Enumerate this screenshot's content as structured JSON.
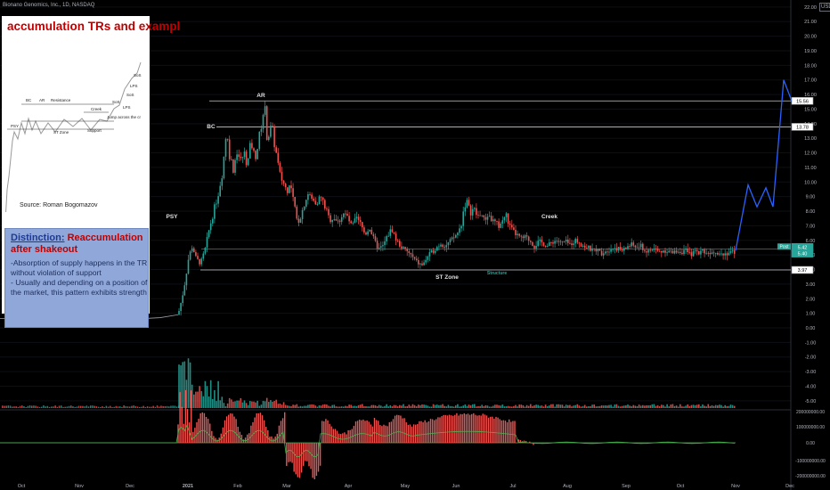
{
  "header": {
    "symbol": "Bionano Genomics, Inc., 1D, NASDAQ",
    "currency": "USD"
  },
  "panel": {
    "title": "accumulation TRs and exampl",
    "source": "Source: Roman Bogomazov",
    "thumb_labels": [
      "BC",
      "AR",
      "Resistance",
      "PSY",
      "ST Zone",
      "Creek",
      "SoS",
      "LPS",
      "Jump across the cr",
      "Support",
      "SoS",
      "LPS",
      "SoS"
    ]
  },
  "distinction": {
    "heading_a": "Distinction:",
    "heading_b": "Reaccumulation after shakeout",
    "body": "-Absorption of supply happens in the TR without violation of support\n- Usually and depending on a position of the market, this pattern exhibits strength"
  },
  "annotations": {
    "psy": "PSY",
    "bc": "BC",
    "ar": "AR",
    "st_zone": "ST Zone",
    "structure": "Structure",
    "creek": "Creek"
  },
  "price_tags": {
    "ar_level": "15.56",
    "bc_level": "13.78",
    "support_level": "3.97",
    "post": "Post",
    "last_a": "5.42",
    "last_b": "5.40"
  },
  "colors": {
    "bull": "#26a69a",
    "bear": "#ef5350",
    "projection": "#2962ff",
    "volume_up": "#26a69a",
    "volume_down": "#ef5350",
    "osc_line": "#4caf50"
  },
  "chart_data": {
    "type": "candlestick",
    "y_axis_ticks": [
      "22.00",
      "21.00",
      "20.00",
      "19.00",
      "18.00",
      "17.00",
      "16.00",
      "15.00",
      "14.00",
      "13.00",
      "12.00",
      "11.00",
      "10.00",
      "9.00",
      "8.00",
      "7.00",
      "6.00",
      "5.00",
      "4.00",
      "3.00",
      "2.00",
      "1.00",
      "0.00",
      "-1.00",
      "-2.00",
      "-3.00",
      "-4.00",
      "-5.00"
    ],
    "osc_axis_ticks": [
      "200000000.00",
      "100000000.00",
      "0.00",
      "-100000000.00",
      "-200000000.00"
    ],
    "x_axis_ticks": [
      "Oct",
      "Nov",
      "Dec",
      "2021",
      "Feb",
      "Mar",
      "Apr",
      "May",
      "Jun",
      "Jul",
      "Aug",
      "Sep",
      "Oct",
      "Nov",
      "Dec"
    ],
    "levels": {
      "ar": 15.56,
      "bc": 13.78,
      "support": 3.97
    },
    "close_path": [
      [
        0,
        0.65
      ],
      [
        30,
        0.63
      ],
      [
        60,
        0.6
      ],
      [
        90,
        0.6
      ],
      [
        120,
        0.62
      ],
      [
        150,
        0.6
      ],
      [
        180,
        0.7
      ],
      [
        200,
        0.9
      ],
      [
        205,
        2.2
      ],
      [
        208,
        3.2
      ],
      [
        212,
        4.9
      ],
      [
        216,
        5.6
      ],
      [
        220,
        4.8
      ],
      [
        225,
        4.4
      ],
      [
        230,
        5.3
      ],
      [
        235,
        6.8
      ],
      [
        240,
        8.0
      ],
      [
        245,
        9.2
      ],
      [
        250,
        10.8
      ],
      [
        254,
        13.5
      ],
      [
        258,
        11.8
      ],
      [
        262,
        10.9
      ],
      [
        266,
        12.2
      ],
      [
        270,
        11.4
      ],
      [
        274,
        12.0
      ],
      [
        278,
        11.2
      ],
      [
        282,
        12.8
      ],
      [
        286,
        11.6
      ],
      [
        290,
        12.6
      ],
      [
        294,
        14.2
      ],
      [
        297,
        15.3
      ],
      [
        300,
        13.0
      ],
      [
        305,
        13.8
      ],
      [
        310,
        12.0
      ],
      [
        314,
        10.5
      ],
      [
        318,
        10.0
      ],
      [
        322,
        9.4
      ],
      [
        326,
        9.8
      ],
      [
        330,
        8.5
      ],
      [
        334,
        7.2
      ],
      [
        338,
        7.7
      ],
      [
        342,
        8.6
      ],
      [
        346,
        9.2
      ],
      [
        350,
        8.8
      ],
      [
        355,
        8.6
      ],
      [
        360,
        9.0
      ],
      [
        365,
        8.3
      ],
      [
        370,
        7.4
      ],
      [
        375,
        7.6
      ],
      [
        380,
        7.2
      ],
      [
        385,
        7.9
      ],
      [
        390,
        7.6
      ],
      [
        395,
        6.9
      ],
      [
        400,
        7.5
      ],
      [
        405,
        7.1
      ],
      [
        410,
        6.4
      ],
      [
        415,
        6.9
      ],
      [
        420,
        6.0
      ],
      [
        425,
        5.4
      ],
      [
        430,
        5.6
      ],
      [
        435,
        6.3
      ],
      [
        440,
        6.8
      ],
      [
        445,
        6.0
      ],
      [
        450,
        5.6
      ],
      [
        455,
        5.3
      ],
      [
        460,
        5.1
      ],
      [
        465,
        4.7
      ],
      [
        470,
        4.4
      ],
      [
        475,
        4.3
      ],
      [
        480,
        4.9
      ],
      [
        485,
        5.2
      ],
      [
        490,
        5.5
      ],
      [
        495,
        5.8
      ],
      [
        500,
        5.6
      ],
      [
        505,
        5.9
      ],
      [
        510,
        6.2
      ],
      [
        515,
        6.6
      ],
      [
        518,
        7.1
      ],
      [
        521,
        8.3
      ],
      [
        524,
        8.7
      ],
      [
        528,
        7.9
      ],
      [
        532,
        8.2
      ],
      [
        536,
        7.6
      ],
      [
        540,
        7.9
      ],
      [
        544,
        7.3
      ],
      [
        548,
        7.8
      ],
      [
        552,
        7.4
      ],
      [
        556,
        7.2
      ],
      [
        560,
        7.0
      ],
      [
        564,
        7.3
      ],
      [
        568,
        7.8
      ],
      [
        572,
        7.0
      ],
      [
        576,
        6.6
      ],
      [
        580,
        6.4
      ],
      [
        585,
        6.1
      ],
      [
        590,
        6.2
      ],
      [
        595,
        6.0
      ],
      [
        600,
        5.6
      ],
      [
        605,
        5.9
      ],
      [
        610,
        5.8
      ],
      [
        615,
        5.6
      ],
      [
        620,
        5.9
      ],
      [
        625,
        6.0
      ],
      [
        630,
        5.8
      ],
      [
        635,
        5.9
      ],
      [
        640,
        5.7
      ],
      [
        645,
        6.0
      ],
      [
        650,
        5.9
      ],
      [
        655,
        5.6
      ],
      [
        660,
        5.5
      ],
      [
        665,
        5.3
      ],
      [
        670,
        5.4
      ],
      [
        675,
        5.1
      ],
      [
        680,
        5.3
      ],
      [
        685,
        5.4
      ],
      [
        690,
        5.5
      ],
      [
        695,
        5.4
      ],
      [
        700,
        5.3
      ],
      [
        705,
        5.6
      ],
      [
        710,
        5.7
      ],
      [
        715,
        5.5
      ],
      [
        720,
        5.6
      ],
      [
        725,
        5.2
      ],
      [
        730,
        5.3
      ],
      [
        735,
        5.4
      ],
      [
        740,
        5.2
      ],
      [
        745,
        5.3
      ],
      [
        750,
        5.3
      ],
      [
        755,
        5.1
      ],
      [
        760,
        5.3
      ],
      [
        765,
        5.2
      ],
      [
        770,
        5.3
      ],
      [
        775,
        5.0
      ],
      [
        780,
        5.2
      ],
      [
        785,
        5.2
      ],
      [
        790,
        5.3
      ],
      [
        795,
        5.1
      ],
      [
        800,
        5.3
      ],
      [
        805,
        5.2
      ],
      [
        810,
        5.1
      ],
      [
        815,
        5.1
      ],
      [
        820,
        5.2
      ],
      [
        826,
        5.2
      ]
    ],
    "projection_path": [
      [
        826,
        5.3
      ],
      [
        840,
        9.8
      ],
      [
        850,
        8.3
      ],
      [
        860,
        9.6
      ],
      [
        868,
        8.3
      ],
      [
        880,
        17.0
      ],
      [
        890,
        15.4
      ]
    ]
  }
}
